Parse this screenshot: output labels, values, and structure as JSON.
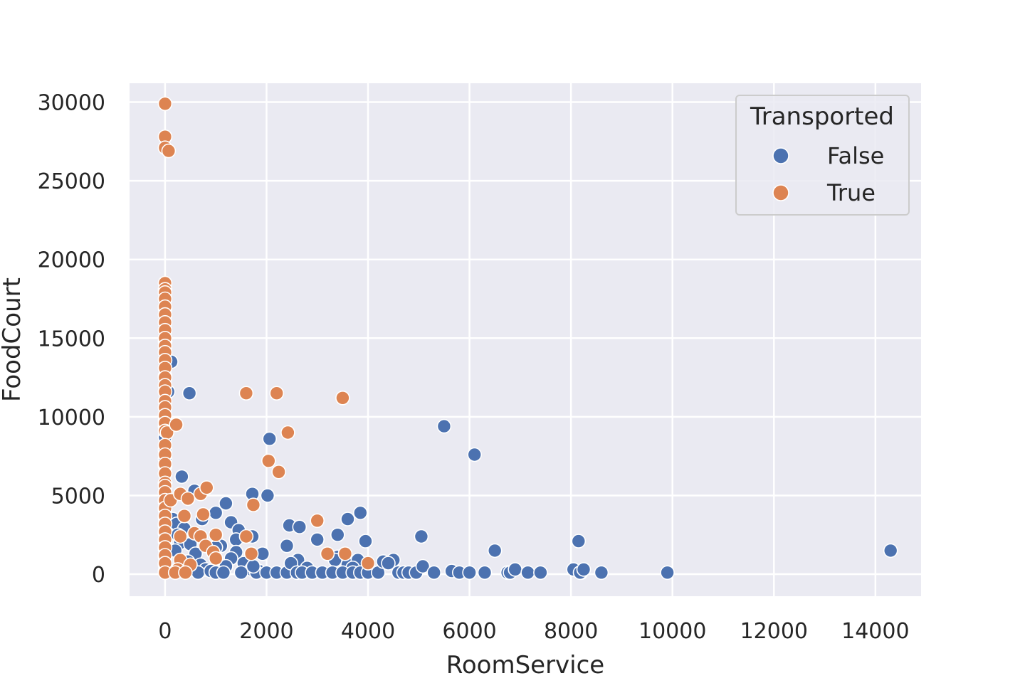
{
  "chart_data": {
    "type": "scatter",
    "title": "",
    "xlabel": "RoomService",
    "ylabel": "FoodCourt",
    "xlim": [
      -700,
      14900
    ],
    "ylim": [
      -1400,
      31200
    ],
    "xticks": [
      0,
      2000,
      4000,
      6000,
      8000,
      10000,
      12000,
      14000
    ],
    "yticks": [
      0,
      5000,
      10000,
      15000,
      20000,
      25000,
      30000
    ],
    "grid": true,
    "legend": {
      "title": "Transported",
      "position": "top-right"
    },
    "colors": {
      "background": "#eaeaf2",
      "grid": "#ffffff",
      "False": "#4c72b0",
      "True": "#dd8452"
    },
    "series": [
      {
        "name": "False",
        "points": [
          [
            0,
            16900
          ],
          [
            0,
            14800
          ],
          [
            0,
            12600
          ],
          [
            0,
            11600
          ],
          [
            0,
            9800
          ],
          [
            0,
            9400
          ],
          [
            0,
            8700
          ],
          [
            0,
            7900
          ],
          [
            0,
            7300
          ],
          [
            0,
            6900
          ],
          [
            0,
            6400
          ],
          [
            0,
            5800
          ],
          [
            0,
            5200
          ],
          [
            0,
            4600
          ],
          [
            0,
            4100
          ],
          [
            0,
            3600
          ],
          [
            0,
            3100
          ],
          [
            0,
            2600
          ],
          [
            0,
            2100
          ],
          [
            0,
            1600
          ],
          [
            0,
            1100
          ],
          [
            0,
            600
          ],
          [
            0,
            200
          ],
          [
            120,
            13500
          ],
          [
            60,
            11600
          ],
          [
            480,
            11500
          ],
          [
            330,
            6200
          ],
          [
            580,
            5300
          ],
          [
            150,
            3500
          ],
          [
            230,
            3200
          ],
          [
            380,
            2900
          ],
          [
            250,
            2500
          ],
          [
            300,
            2000
          ],
          [
            500,
            1900
          ],
          [
            200,
            1500
          ],
          [
            600,
            1300
          ],
          [
            450,
            800
          ],
          [
            350,
            400
          ],
          [
            700,
            600
          ],
          [
            800,
            300
          ],
          [
            650,
            100
          ],
          [
            900,
            200
          ],
          [
            1000,
            100
          ],
          [
            730,
            3500
          ],
          [
            1000,
            3900
          ],
          [
            1200,
            4500
          ],
          [
            1300,
            3300
          ],
          [
            1450,
            2800
          ],
          [
            1400,
            2200
          ],
          [
            1100,
            1800
          ],
          [
            1000,
            1700
          ],
          [
            1400,
            1400
          ],
          [
            1300,
            1000
          ],
          [
            1550,
            700
          ],
          [
            1200,
            500
          ],
          [
            1700,
            300
          ],
          [
            1850,
            200
          ],
          [
            1500,
            100
          ],
          [
            1800,
            100
          ],
          [
            2000,
            100
          ],
          [
            2200,
            100
          ],
          [
            2400,
            100
          ],
          [
            1150,
            100
          ],
          [
            1720,
            5100
          ],
          [
            2020,
            5000
          ],
          [
            2060,
            8600
          ],
          [
            1720,
            2400
          ],
          [
            1920,
            1300
          ],
          [
            1740,
            500
          ],
          [
            2450,
            3100
          ],
          [
            2650,
            3000
          ],
          [
            2400,
            1800
          ],
          [
            2620,
            900
          ],
          [
            2480,
            700
          ],
          [
            2800,
            400
          ],
          [
            2600,
            100
          ],
          [
            2700,
            100
          ],
          [
            2900,
            100
          ],
          [
            3000,
            2200
          ],
          [
            3400,
            2500
          ],
          [
            3600,
            3500
          ],
          [
            3850,
            3900
          ],
          [
            3950,
            2100
          ],
          [
            3400,
            1100
          ],
          [
            3350,
            900
          ],
          [
            3600,
            600
          ],
          [
            3800,
            900
          ],
          [
            3700,
            400
          ],
          [
            3100,
            100
          ],
          [
            3300,
            100
          ],
          [
            3500,
            100
          ],
          [
            3700,
            100
          ],
          [
            3850,
            100
          ],
          [
            4000,
            100
          ],
          [
            4200,
            100
          ],
          [
            4300,
            800
          ],
          [
            4500,
            900
          ],
          [
            4400,
            700
          ],
          [
            4600,
            100
          ],
          [
            4700,
            100
          ],
          [
            4800,
            100
          ],
          [
            4950,
            100
          ],
          [
            5050,
            2400
          ],
          [
            5080,
            500
          ],
          [
            5300,
            100
          ],
          [
            5500,
            9400
          ],
          [
            5650,
            200
          ],
          [
            5800,
            100
          ],
          [
            6000,
            100
          ],
          [
            6100,
            7600
          ],
          [
            6300,
            100
          ],
          [
            6500,
            1500
          ],
          [
            6750,
            100
          ],
          [
            6800,
            100
          ],
          [
            6900,
            300
          ],
          [
            7150,
            100
          ],
          [
            7400,
            100
          ],
          [
            8050,
            300
          ],
          [
            8150,
            2100
          ],
          [
            8200,
            100
          ],
          [
            8180,
            100
          ],
          [
            8250,
            300
          ],
          [
            8600,
            100
          ],
          [
            9900,
            100
          ],
          [
            14300,
            1500
          ]
        ]
      },
      {
        "name": "True",
        "points": [
          [
            0,
            29900
          ],
          [
            0,
            27800
          ],
          [
            0,
            27100
          ],
          [
            70,
            26900
          ],
          [
            0,
            18500
          ],
          [
            0,
            18100
          ],
          [
            0,
            17900
          ],
          [
            0,
            17500
          ],
          [
            0,
            17000
          ],
          [
            0,
            16500
          ],
          [
            0,
            16000
          ],
          [
            0,
            15500
          ],
          [
            0,
            15000
          ],
          [
            0,
            14500
          ],
          [
            0,
            14100
          ],
          [
            0,
            13600
          ],
          [
            0,
            13100
          ],
          [
            0,
            12500
          ],
          [
            0,
            12000
          ],
          [
            0,
            11600
          ],
          [
            0,
            11000
          ],
          [
            0,
            10600
          ],
          [
            0,
            10100
          ],
          [
            0,
            9600
          ],
          [
            0,
            9100
          ],
          [
            40,
            9000
          ],
          [
            0,
            8200
          ],
          [
            0,
            7600
          ],
          [
            0,
            7000
          ],
          [
            0,
            6400
          ],
          [
            0,
            5800
          ],
          [
            0,
            5600
          ],
          [
            0,
            5200
          ],
          [
            0,
            4700
          ],
          [
            0,
            4200
          ],
          [
            0,
            3700
          ],
          [
            0,
            3200
          ],
          [
            0,
            2700
          ],
          [
            0,
            2200
          ],
          [
            0,
            1700
          ],
          [
            0,
            1200
          ],
          [
            0,
            700
          ],
          [
            0,
            100
          ],
          [
            220,
            9500
          ],
          [
            110,
            4700
          ],
          [
            300,
            5100
          ],
          [
            450,
            4800
          ],
          [
            380,
            3700
          ],
          [
            700,
            5100
          ],
          [
            820,
            5500
          ],
          [
            750,
            3800
          ],
          [
            580,
            2600
          ],
          [
            300,
            2400
          ],
          [
            700,
            2400
          ],
          [
            1000,
            2500
          ],
          [
            800,
            1800
          ],
          [
            950,
            1400
          ],
          [
            1000,
            1000
          ],
          [
            300,
            900
          ],
          [
            500,
            600
          ],
          [
            250,
            300
          ],
          [
            200,
            100
          ],
          [
            400,
            100
          ],
          [
            1600,
            11500
          ],
          [
            2200,
            11500
          ],
          [
            3500,
            11200
          ],
          [
            2420,
            9000
          ],
          [
            2040,
            7200
          ],
          [
            2240,
            6500
          ],
          [
            1740,
            4400
          ],
          [
            3000,
            3400
          ],
          [
            1600,
            2400
          ],
          [
            1700,
            1300
          ],
          [
            3200,
            1300
          ],
          [
            3550,
            1300
          ],
          [
            4000,
            700
          ]
        ]
      }
    ]
  }
}
